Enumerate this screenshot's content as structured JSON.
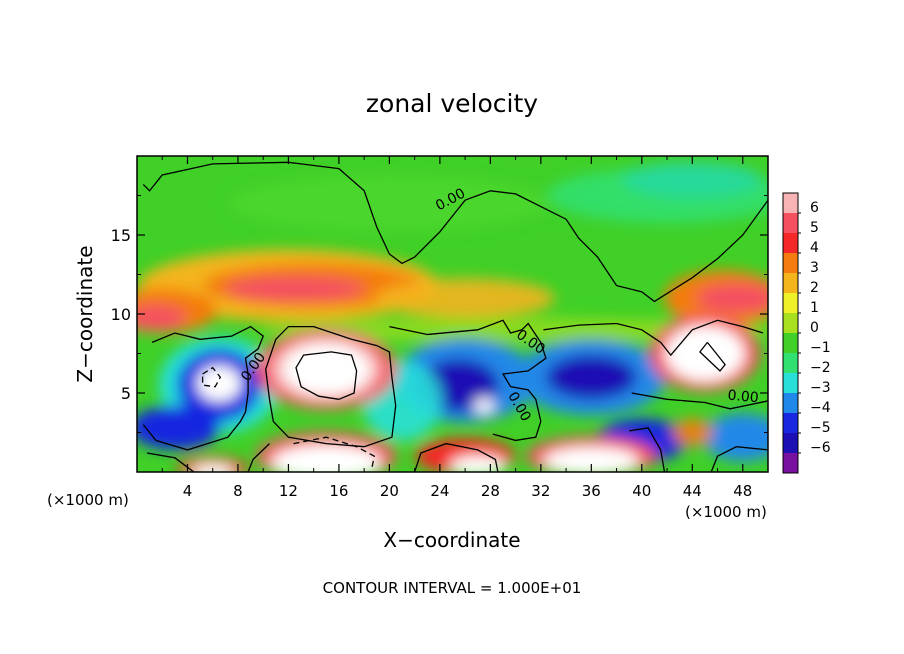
{
  "chart_data": {
    "type": "heatmap",
    "title": "zonal velocity",
    "xlabel": "X−coordinate",
    "ylabel": "Z−coordinate",
    "x_unit_left": "(×1000 m)",
    "x_unit_right": "(×1000 m)",
    "footer": "CONTOUR INTERVAL = 1.000E+01",
    "xlim": [
      0,
      50
    ],
    "ylim": [
      0,
      20
    ],
    "x_ticks": [
      4,
      8,
      12,
      16,
      20,
      24,
      28,
      32,
      36,
      40,
      44,
      48
    ],
    "y_ticks": [
      5,
      10,
      15
    ],
    "contour_labels": [
      {
        "text": "0.00",
        "x": 25,
        "y": 17
      },
      {
        "text": "0.00",
        "x": 9.5,
        "y": 6.5
      },
      {
        "text": "0.00",
        "x": 31,
        "y": 8
      },
      {
        "text": "0.00",
        "x": 30,
        "y": 4
      },
      {
        "text": "0.00",
        "x": 48,
        "y": 4.5
      }
    ],
    "colorbar": {
      "labels": [
        "6",
        "5",
        "4",
        "3",
        "2",
        "1",
        "0",
        "−1",
        "−2",
        "−3",
        "−4",
        "−5",
        "−6"
      ],
      "colors": [
        "#f8b4b4",
        "#f45060",
        "#f42828",
        "#f47c10",
        "#f4b41c",
        "#f0f028",
        "#a8e020",
        "#40d028",
        "#30e070",
        "#28e0d8",
        "#2088e8",
        "#1828e0",
        "#1c10b4",
        "#7810a0"
      ]
    },
    "field_features": [
      {
        "type": "jet",
        "value": 4.5,
        "x": 13,
        "y": 11.5
      },
      {
        "type": "jet",
        "value": 4,
        "x": 2,
        "y": 10
      },
      {
        "type": "jet",
        "value": 5,
        "x": 47,
        "y": 11
      },
      {
        "type": "jet",
        "value": 2,
        "x": 26,
        "y": 11
      },
      {
        "type": "saturated_positive",
        "value": 8,
        "x": 15,
        "y": 6.5
      },
      {
        "type": "saturated_positive",
        "value": 8,
        "x": 45,
        "y": 7.5
      },
      {
        "type": "saturated_positive",
        "value": 8,
        "x": 6.5,
        "y": 5.5
      },
      {
        "type": "saturated_positive",
        "value": 8,
        "x": 15,
        "y": 1
      },
      {
        "type": "saturated_positive",
        "value": 8,
        "x": 36,
        "y": 1
      },
      {
        "type": "saturated_positive",
        "value": 8,
        "x": 6,
        "y": 0.2
      },
      {
        "type": "negative",
        "value": -5,
        "x": 26,
        "y": 5.5
      },
      {
        "type": "negative",
        "value": -5,
        "x": 36,
        "y": 6
      },
      {
        "type": "negative",
        "value": -4,
        "x": 7,
        "y": 5
      },
      {
        "type": "negative",
        "value": -3.5,
        "x": 3,
        "y": 3
      },
      {
        "type": "negative",
        "value": -3.5,
        "x": 40,
        "y": 2
      },
      {
        "type": "negative",
        "value": -3,
        "x": 48,
        "y": 2
      }
    ]
  }
}
